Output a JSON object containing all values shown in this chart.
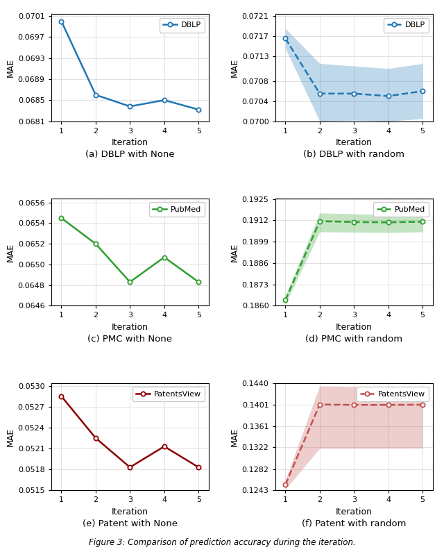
{
  "iterations": [
    1,
    2,
    3,
    4,
    5
  ],
  "subplots": [
    {
      "label": "DBLP",
      "values": [
        0.07,
        0.0686,
        0.06838,
        0.0685,
        0.06832
      ],
      "color": "#1f77b4",
      "linestyle": "solid",
      "has_fill": false,
      "fill_upper": null,
      "fill_lower": null,
      "ylim": [
        0.0681,
        0.07014
      ],
      "yticks": [
        0.0681,
        0.0685,
        0.0689,
        0.0693,
        0.0697,
        0.0701
      ],
      "yticklabels": [
        "0.0681",
        "0.0685",
        "0.0689",
        "0.0693",
        "0.0697",
        "0.0701"
      ],
      "caption": "(a) DBLP with None"
    },
    {
      "label": "DBLP",
      "values": [
        0.07165,
        0.07055,
        0.07055,
        0.0705,
        0.0706
      ],
      "color": "#1f77b4",
      "linestyle": "dashed",
      "has_fill": true,
      "fill_upper": [
        0.07185,
        0.07115,
        0.0711,
        0.07105,
        0.07115
      ],
      "fill_lower": [
        0.07145,
        0.07,
        0.07002,
        0.07,
        0.07005
      ],
      "ylim": [
        0.07,
        0.07214
      ],
      "yticks": [
        0.07,
        0.0704,
        0.0708,
        0.0713,
        0.0717,
        0.0721
      ],
      "yticklabels": [
        "0.0700",
        "0.0704",
        "0.0708",
        "0.0713",
        "0.0717",
        "0.0721"
      ],
      "caption": "(b) DBLP with random"
    },
    {
      "label": "PubMed",
      "values": [
        0.06545,
        0.0652,
        0.06483,
        0.06507,
        0.06483
      ],
      "color": "#2ca02c",
      "linestyle": "solid",
      "has_fill": false,
      "fill_upper": null,
      "fill_lower": null,
      "ylim": [
        0.0646,
        0.06564
      ],
      "yticks": [
        0.0646,
        0.0648,
        0.065,
        0.0652,
        0.0654,
        0.0656
      ],
      "yticklabels": [
        "0.0646",
        "0.0648",
        "0.0650",
        "0.0652",
        "0.0654",
        "0.0656"
      ],
      "caption": "(c) PMC with None"
    },
    {
      "label": "PubMed",
      "values": [
        0.18635,
        0.19115,
        0.1911,
        0.19108,
        0.19112
      ],
      "color": "#2ca02c",
      "linestyle": "dashed",
      "has_fill": true,
      "fill_upper": [
        0.1866,
        0.19165,
        0.1916,
        0.19155,
        0.1916
      ],
      "fill_lower": [
        0.1861,
        0.1905,
        0.19048,
        0.19046,
        0.1905
      ],
      "ylim": [
        0.186,
        0.19254
      ],
      "yticks": [
        0.186,
        0.1873,
        0.1886,
        0.1899,
        0.1912,
        0.1925
      ],
      "yticklabels": [
        "0.1860",
        "0.1873",
        "0.1886",
        "0.1899",
        "0.1912",
        "0.1925"
      ],
      "caption": "(d) PMC with random"
    },
    {
      "label": "PatentsView",
      "values": [
        0.05285,
        0.05225,
        0.05183,
        0.05213,
        0.05183
      ],
      "color": "#8b0000",
      "linestyle": "solid",
      "has_fill": false,
      "fill_upper": null,
      "fill_lower": null,
      "ylim": [
        0.0515,
        0.05304
      ],
      "yticks": [
        0.0515,
        0.0518,
        0.0521,
        0.0524,
        0.0527,
        0.053
      ],
      "yticklabels": [
        "0.0515",
        "0.0518",
        "0.0521",
        "0.0524",
        "0.0527",
        "0.0530"
      ],
      "caption": "(e) Patent with None"
    },
    {
      "label": "PatentsView",
      "values": [
        0.12535,
        0.14008,
        0.14001,
        0.14001,
        0.14005
      ],
      "color": "#c0504d",
      "linestyle": "dashed",
      "has_fill": true,
      "fill_upper": [
        0.1262,
        0.1435,
        0.1434,
        0.1434,
        0.14342
      ],
      "fill_lower": [
        0.1245,
        0.132,
        0.132,
        0.132,
        0.13202
      ],
      "ylim": [
        0.1243,
        0.14404
      ],
      "yticks": [
        0.1243,
        0.1282,
        0.1322,
        0.1361,
        0.1401,
        0.144
      ],
      "yticklabels": [
        "0.1243",
        "0.1282",
        "0.1322",
        "0.1361",
        "0.1401",
        "0.1440"
      ],
      "caption": "(f) Patent with random"
    }
  ],
  "xlabel": "Iteration",
  "ylabel": "MAE",
  "figure_caption": "Figure 3: Comparison of prediction accuracy during the iteration.",
  "bg_color": "#ffffff"
}
